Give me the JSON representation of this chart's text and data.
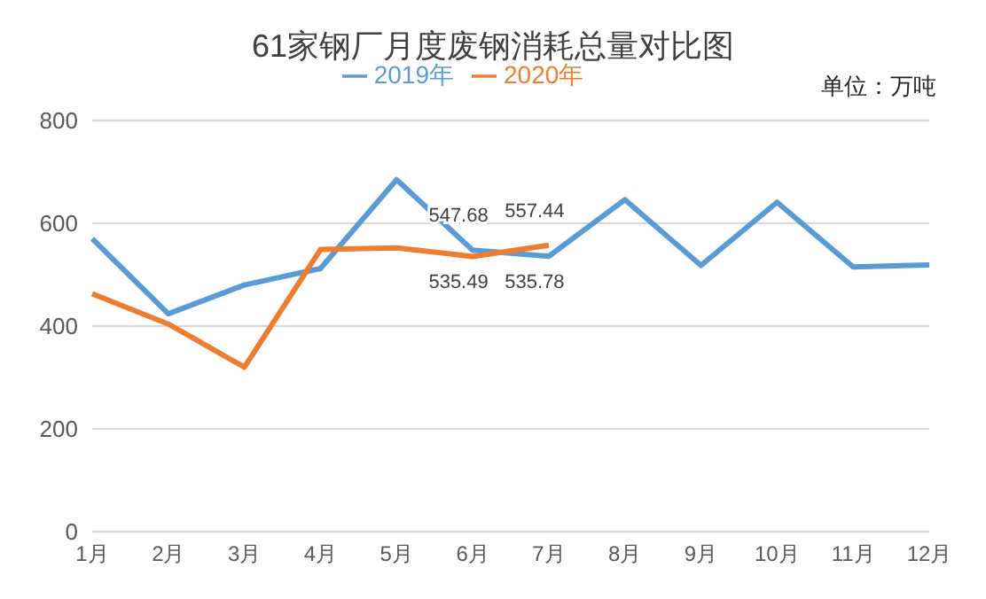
{
  "chart_data": {
    "type": "line",
    "title": "61家钢厂月度废钢消耗总量对比图",
    "annotations": [
      "单位：万吨"
    ],
    "categories": [
      "1月",
      "2月",
      "3月",
      "4月",
      "5月",
      "6月",
      "7月",
      "8月",
      "9月",
      "10月",
      "11月",
      "12月"
    ],
    "series": [
      {
        "name": "2019年",
        "color": "#5b9bd5",
        "values": [
          570,
          424,
          480,
          512,
          685,
          547.68,
          535.78,
          646,
          518,
          641,
          515,
          519
        ],
        "value_labels": [
          null,
          null,
          null,
          null,
          null,
          "547.68",
          "535.78",
          null,
          null,
          null,
          null,
          null
        ]
      },
      {
        "name": "2020年",
        "color": "#ed7d31",
        "values": [
          463,
          404,
          320,
          549,
          552,
          535.49,
          557.44,
          null,
          null,
          null,
          null,
          null
        ],
        "value_labels": [
          null,
          null,
          null,
          null,
          null,
          "535.49",
          "557.44",
          null,
          null,
          null,
          null,
          null
        ]
      }
    ],
    "ylim": [
      0,
      800
    ],
    "yticks": [
      0,
      200,
      400,
      600,
      800
    ],
    "grid": "y",
    "legend": "top",
    "marker": "none",
    "line_style": "solid"
  }
}
